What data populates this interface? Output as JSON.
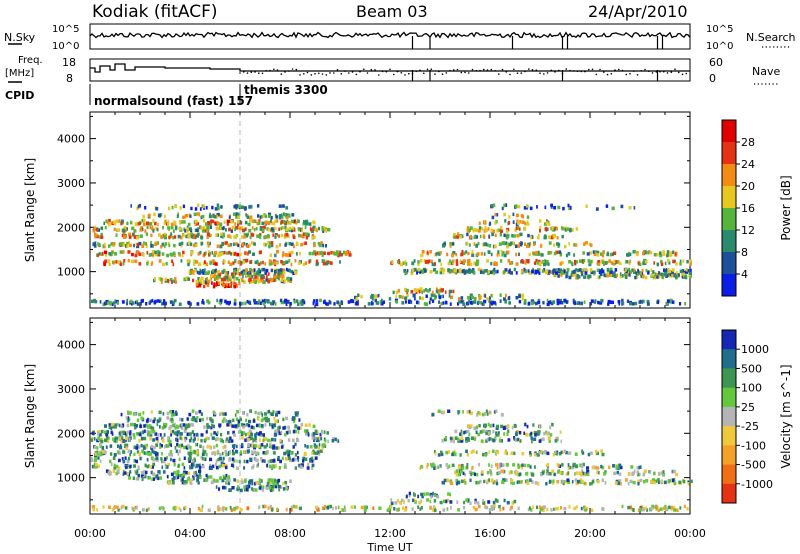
{
  "header": {
    "station": "Kodiak (fitACF)",
    "beam": "Beam 03",
    "date": "24/Apr/2010"
  },
  "top_panels": {
    "nsky_label": "N.Sky",
    "nsearch_label": "N.Search",
    "freq_label": "Freq.",
    "freq_unit": "[MHz]",
    "nave_label": "Nave",
    "cpid_label": "CPID",
    "noise_ticks": [
      "10^5",
      "10^0"
    ],
    "freq_ticks": [
      "18",
      "8"
    ],
    "nave_ticks": [
      "60",
      "0"
    ],
    "cpid_segments": [
      {
        "label": "normalsound (fast) 157",
        "start_hour": 0,
        "end_hour": 6
      },
      {
        "label": "themis 3300",
        "start_hour": 6,
        "end_hour": 24
      }
    ]
  },
  "x_axis": {
    "label": "Time UT",
    "ticks": [
      "00:00",
      "04:00",
      "08:00",
      "12:00",
      "16:00",
      "20:00",
      "00:00"
    ]
  },
  "chart_data": [
    {
      "type": "heatmap",
      "title": "",
      "xlabel": "Time UT",
      "ylabel": "Slant Range [km]",
      "xlim": [
        0,
        24
      ],
      "ylim": [
        180,
        4600
      ],
      "yticks": [
        "1000",
        "2000",
        "3000",
        "4000"
      ],
      "colorbar": {
        "label": "Power [dB]",
        "ticks": [
          "4",
          "8",
          "12",
          "16",
          "20",
          "24",
          "28"
        ],
        "range": [
          0,
          32
        ],
        "colors": [
          "#0a1ee6",
          "#1e4f9a",
          "#2a8a6e",
          "#55b43c",
          "#e6c81e",
          "#f28c14",
          "#e63214",
          "#e00000"
        ]
      },
      "bands": [
        {
          "range": 300,
          "start_hour": 0.0,
          "end_hour": 24.0,
          "density": 0.45,
          "level": 0.15
        },
        {
          "range": 420,
          "start_hour": 10.5,
          "end_hour": 17.5,
          "density": 0.35,
          "level": 0.4
        },
        {
          "range": 560,
          "start_hour": 12.0,
          "end_hour": 14.5,
          "density": 0.5,
          "level": 0.55
        },
        {
          "range": 700,
          "start_hour": 4.2,
          "end_hour": 6.0,
          "density": 0.9,
          "level": 0.95
        },
        {
          "range": 800,
          "start_hour": 2.5,
          "end_hour": 8.0,
          "density": 0.7,
          "level": 0.5
        },
        {
          "range": 900,
          "start_hour": 4.5,
          "end_hour": 7.8,
          "density": 0.7,
          "level": 0.55
        },
        {
          "range": 900,
          "start_hour": 18.5,
          "end_hour": 24.0,
          "density": 0.8,
          "level": 0.45
        },
        {
          "range": 1000,
          "start_hour": 3.8,
          "end_hour": 8.2,
          "density": 0.75,
          "level": 0.35
        },
        {
          "range": 1000,
          "start_hour": 12.5,
          "end_hour": 24.0,
          "density": 0.75,
          "level": 0.35
        },
        {
          "range": 1200,
          "start_hour": 0.5,
          "end_hour": 10.0,
          "density": 0.45,
          "level": 0.6
        },
        {
          "range": 1200,
          "start_hour": 12.0,
          "end_hour": 24.0,
          "density": 0.5,
          "level": 0.55
        },
        {
          "range": 1400,
          "start_hour": 0.2,
          "end_hour": 10.5,
          "density": 0.5,
          "level": 0.6
        },
        {
          "range": 1400,
          "start_hour": 13.0,
          "end_hour": 23.5,
          "density": 0.45,
          "level": 0.5
        },
        {
          "range": 1600,
          "start_hour": 0.0,
          "end_hour": 9.5,
          "density": 0.5,
          "level": 0.5
        },
        {
          "range": 1600,
          "start_hour": 14.0,
          "end_hour": 20.0,
          "density": 0.4,
          "level": 0.45
        },
        {
          "range": 1800,
          "start_hour": 0.0,
          "end_hour": 9.0,
          "density": 0.55,
          "level": 0.55
        },
        {
          "range": 1800,
          "start_hour": 14.5,
          "end_hour": 19.0,
          "density": 0.45,
          "level": 0.5
        },
        {
          "range": 1950,
          "start_hour": 0.0,
          "end_hour": 9.5,
          "density": 0.6,
          "level": 0.5
        },
        {
          "range": 1950,
          "start_hour": 15.0,
          "end_hour": 19.5,
          "density": 0.5,
          "level": 0.55
        },
        {
          "range": 2100,
          "start_hour": 0.5,
          "end_hour": 9.0,
          "density": 0.55,
          "level": 0.6
        },
        {
          "range": 2100,
          "start_hour": 15.5,
          "end_hour": 18.5,
          "density": 0.4,
          "level": 0.5
        },
        {
          "range": 2250,
          "start_hour": 2.0,
          "end_hour": 8.5,
          "density": 0.4,
          "level": 0.45
        },
        {
          "range": 2250,
          "start_hour": 16.0,
          "end_hour": 17.5,
          "density": 0.3,
          "level": 0.4
        },
        {
          "range": 2450,
          "start_hour": 1.0,
          "end_hour": 8.0,
          "density": 0.25,
          "level": 0.3
        },
        {
          "range": 2450,
          "start_hour": 16.0,
          "end_hour": 22.5,
          "density": 0.2,
          "level": 0.25
        }
      ]
    },
    {
      "type": "heatmap",
      "title": "",
      "xlabel": "Time UT",
      "ylabel": "Slant Range [km]",
      "xlim": [
        0,
        24
      ],
      "ylim": [
        180,
        4600
      ],
      "yticks": [
        "1000",
        "2000",
        "3000",
        "4000"
      ],
      "colorbar": {
        "label": "Velocity [m s^-1]",
        "ticks": [
          "1000",
          "500",
          "100",
          "25",
          "-25",
          "-100",
          "-500",
          "-1000"
        ],
        "range": [
          -1200,
          1200
        ],
        "colors": [
          "#1428b4",
          "#1e6e8c",
          "#3c9650",
          "#64c83c",
          "#b4b4b4",
          "#f0c83c",
          "#f5a028",
          "#f06e14",
          "#e63214"
        ]
      },
      "bands": [
        {
          "range": 300,
          "start_hour": 0.0,
          "end_hour": 24.0,
          "density": 0.35,
          "level": 0.5
        },
        {
          "range": 450,
          "start_hour": 12.0,
          "end_hour": 17.0,
          "density": 0.35,
          "level": 0.35
        },
        {
          "range": 600,
          "start_hour": 12.5,
          "end_hour": 14.5,
          "density": 0.45,
          "level": 0.3
        },
        {
          "range": 750,
          "start_hour": 5.0,
          "end_hour": 8.0,
          "density": 0.6,
          "level": 0.3
        },
        {
          "range": 900,
          "start_hour": 3.0,
          "end_hour": 8.0,
          "density": 0.6,
          "level": 0.35
        },
        {
          "range": 900,
          "start_hour": 14.0,
          "end_hour": 24.0,
          "density": 0.5,
          "level": 0.4
        },
        {
          "range": 1000,
          "start_hour": 1.5,
          "end_hour": 5.5,
          "density": 0.5,
          "level": 0.25
        },
        {
          "range": 1100,
          "start_hour": 0.5,
          "end_hour": 4.5,
          "density": 0.45,
          "level": 0.3
        },
        {
          "range": 1100,
          "start_hour": 14.5,
          "end_hour": 23.5,
          "density": 0.45,
          "level": 0.4
        },
        {
          "range": 1250,
          "start_hour": 0.0,
          "end_hour": 9.0,
          "density": 0.45,
          "level": 0.3
        },
        {
          "range": 1250,
          "start_hour": 13.0,
          "end_hour": 22.0,
          "density": 0.4,
          "level": 0.4
        },
        {
          "range": 1400,
          "start_hour": 0.0,
          "end_hour": 9.0,
          "density": 0.45,
          "level": 0.3
        },
        {
          "range": 1550,
          "start_hour": 0.0,
          "end_hour": 9.5,
          "density": 0.5,
          "level": 0.35
        },
        {
          "range": 1550,
          "start_hour": 13.5,
          "end_hour": 20.5,
          "density": 0.4,
          "level": 0.4
        },
        {
          "range": 1700,
          "start_hour": 0.0,
          "end_hour": 9.5,
          "density": 0.45,
          "level": 0.3
        },
        {
          "range": 1850,
          "start_hour": 0.0,
          "end_hour": 10.0,
          "density": 0.5,
          "level": 0.35
        },
        {
          "range": 1850,
          "start_hour": 14.0,
          "end_hour": 19.0,
          "density": 0.45,
          "level": 0.35
        },
        {
          "range": 2000,
          "start_hour": 0.0,
          "end_hour": 9.5,
          "density": 0.55,
          "level": 0.3
        },
        {
          "range": 2000,
          "start_hour": 14.5,
          "end_hour": 19.0,
          "density": 0.45,
          "level": 0.35
        },
        {
          "range": 2150,
          "start_hour": 0.5,
          "end_hour": 9.0,
          "density": 0.5,
          "level": 0.3
        },
        {
          "range": 2150,
          "start_hour": 15.0,
          "end_hour": 18.5,
          "density": 0.4,
          "level": 0.3
        },
        {
          "range": 2300,
          "start_hour": 1.0,
          "end_hour": 8.5,
          "density": 0.4,
          "level": 0.3
        },
        {
          "range": 2450,
          "start_hour": 1.0,
          "end_hour": 8.5,
          "density": 0.3,
          "level": 0.3
        },
        {
          "range": 2450,
          "start_hour": 13.5,
          "end_hour": 16.5,
          "density": 0.35,
          "level": 0.35
        }
      ]
    }
  ]
}
